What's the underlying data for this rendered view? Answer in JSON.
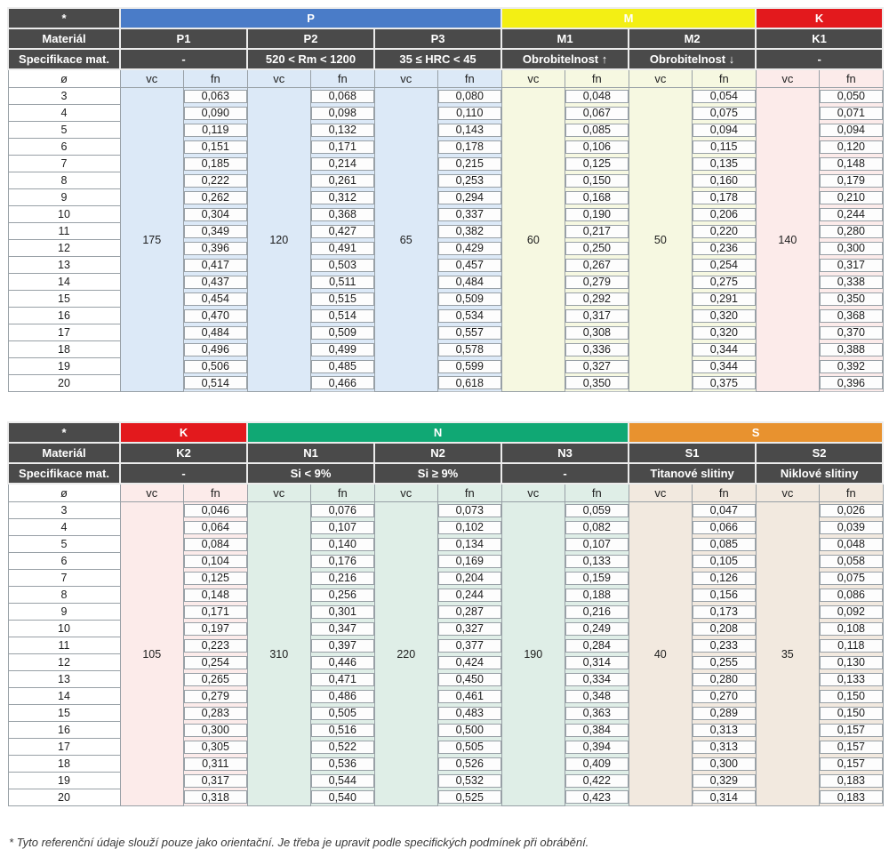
{
  "footnote": "* Tyto referenční údaje slouží pouze jako orientační. Je třeba je upravit podle specifických podmínek při obrábění.",
  "labels": {
    "star": "*",
    "material": "Materiál",
    "spec": "Specifikace mat.",
    "diameter": "ø",
    "vc": "vc",
    "fn": "fn"
  },
  "colors": {
    "header_dark": "#4a4a4a",
    "grid": "#98a0a6",
    "band_P": "#4a7cc8",
    "band_M": "#f3ef14",
    "band_K": "#e3191d",
    "band_N": "#10a874",
    "band_S": "#e8922f"
  },
  "diameters": [
    "3",
    "4",
    "5",
    "6",
    "7",
    "8",
    "9",
    "10",
    "11",
    "12",
    "13",
    "14",
    "15",
    "16",
    "17",
    "18",
    "19",
    "20"
  ],
  "tables": [
    {
      "name": "table-1",
      "groups": [
        {
          "label": "P",
          "color": "#4a7cc8",
          "tint": "#dce9f7",
          "span": 3
        },
        {
          "label": "M",
          "color": "#f3ef14",
          "tint": "#f6f8e1",
          "span": 2
        },
        {
          "label": "K",
          "color": "#e3191d",
          "tint": "#fcebea",
          "span": 1
        }
      ],
      "columns": [
        {
          "id": "P1",
          "group": 0,
          "spec": "-",
          "vc": "175",
          "fn": [
            "0,063",
            "0,090",
            "0,119",
            "0,151",
            "0,185",
            "0,222",
            "0,262",
            "0,304",
            "0,349",
            "0,396",
            "0,417",
            "0,437",
            "0,454",
            "0,470",
            "0,484",
            "0,496",
            "0,506",
            "0,514"
          ]
        },
        {
          "id": "P2",
          "group": 0,
          "spec": "520 < Rm < 1200",
          "vc": "120",
          "fn": [
            "0,068",
            "0,098",
            "0,132",
            "0,171",
            "0,214",
            "0,261",
            "0,312",
            "0,368",
            "0,427",
            "0,491",
            "0,503",
            "0,511",
            "0,515",
            "0,514",
            "0,509",
            "0,499",
            "0,485",
            "0,466"
          ]
        },
        {
          "id": "P3",
          "group": 0,
          "spec": "35 ≤ HRC < 45",
          "vc": "65",
          "fn": [
            "0,080",
            "0,110",
            "0,143",
            "0,178",
            "0,215",
            "0,253",
            "0,294",
            "0,337",
            "0,382",
            "0,429",
            "0,457",
            "0,484",
            "0,509",
            "0,534",
            "0,557",
            "0,578",
            "0,599",
            "0,618"
          ]
        },
        {
          "id": "M1",
          "group": 1,
          "spec": "Obrobitelnost ↑",
          "vc": "60",
          "fn": [
            "0,048",
            "0,067",
            "0,085",
            "0,106",
            "0,125",
            "0,150",
            "0,168",
            "0,190",
            "0,217",
            "0,250",
            "0,267",
            "0,279",
            "0,292",
            "0,317",
            "0,308",
            "0,336",
            "0,327",
            "0,350"
          ]
        },
        {
          "id": "M2",
          "group": 1,
          "spec": "Obrobitelnost ↓",
          "vc": "50",
          "fn": [
            "0,054",
            "0,075",
            "0,094",
            "0,115",
            "0,135",
            "0,160",
            "0,178",
            "0,206",
            "0,220",
            "0,236",
            "0,254",
            "0,275",
            "0,291",
            "0,320",
            "0,320",
            "0,344",
            "0,344",
            "0,375"
          ]
        },
        {
          "id": "K1",
          "group": 2,
          "spec": "-",
          "vc": "140",
          "fn": [
            "0,050",
            "0,071",
            "0,094",
            "0,120",
            "0,148",
            "0,179",
            "0,210",
            "0,244",
            "0,280",
            "0,300",
            "0,317",
            "0,338",
            "0,350",
            "0,368",
            "0,370",
            "0,388",
            "0,392",
            "0,396"
          ]
        }
      ]
    },
    {
      "name": "table-2",
      "groups": [
        {
          "label": "K",
          "color": "#e3191d",
          "tint": "#fcebea",
          "span": 1
        },
        {
          "label": "N",
          "color": "#10a874",
          "tint": "#dfeee7",
          "span": 3
        },
        {
          "label": "S",
          "color": "#e8922f",
          "tint": "#f2e9df",
          "span": 2
        }
      ],
      "columns": [
        {
          "id": "K2",
          "group": 0,
          "spec": "-",
          "vc": "105",
          "fn": [
            "0,046",
            "0,064",
            "0,084",
            "0,104",
            "0,125",
            "0,148",
            "0,171",
            "0,197",
            "0,223",
            "0,254",
            "0,265",
            "0,279",
            "0,283",
            "0,300",
            "0,305",
            "0,311",
            "0,317",
            "0,318"
          ]
        },
        {
          "id": "N1",
          "group": 1,
          "spec": "Si < 9%",
          "vc": "310",
          "fn": [
            "0,076",
            "0,107",
            "0,140",
            "0,176",
            "0,216",
            "0,256",
            "0,301",
            "0,347",
            "0,397",
            "0,446",
            "0,471",
            "0,486",
            "0,505",
            "0,516",
            "0,522",
            "0,536",
            "0,544",
            "0,540"
          ]
        },
        {
          "id": "N2",
          "group": 1,
          "spec": "Si ≥ 9%",
          "vc": "220",
          "fn": [
            "0,073",
            "0,102",
            "0,134",
            "0,169",
            "0,204",
            "0,244",
            "0,287",
            "0,327",
            "0,377",
            "0,424",
            "0,450",
            "0,461",
            "0,483",
            "0,500",
            "0,505",
            "0,526",
            "0,532",
            "0,525"
          ]
        },
        {
          "id": "N3",
          "group": 1,
          "spec": "-",
          "vc": "190",
          "fn": [
            "0,059",
            "0,082",
            "0,107",
            "0,133",
            "0,159",
            "0,188",
            "0,216",
            "0,249",
            "0,284",
            "0,314",
            "0,334",
            "0,348",
            "0,363",
            "0,384",
            "0,394",
            "0,409",
            "0,422",
            "0,423"
          ]
        },
        {
          "id": "S1",
          "group": 2,
          "spec": "Titanové slitiny",
          "vc": "40",
          "fn": [
            "0,047",
            "0,066",
            "0,085",
            "0,105",
            "0,126",
            "0,156",
            "0,173",
            "0,208",
            "0,233",
            "0,255",
            "0,280",
            "0,270",
            "0,289",
            "0,313",
            "0,313",
            "0,300",
            "0,329",
            "0,314"
          ]
        },
        {
          "id": "S2",
          "group": 2,
          "spec": "Niklové slitiny",
          "vc": "35",
          "fn": [
            "0,026",
            "0,039",
            "0,048",
            "0,058",
            "0,075",
            "0,086",
            "0,092",
            "0,108",
            "0,118",
            "0,130",
            "0,133",
            "0,150",
            "0,150",
            "0,157",
            "0,157",
            "0,157",
            "0,183",
            "0,183"
          ]
        }
      ]
    }
  ]
}
